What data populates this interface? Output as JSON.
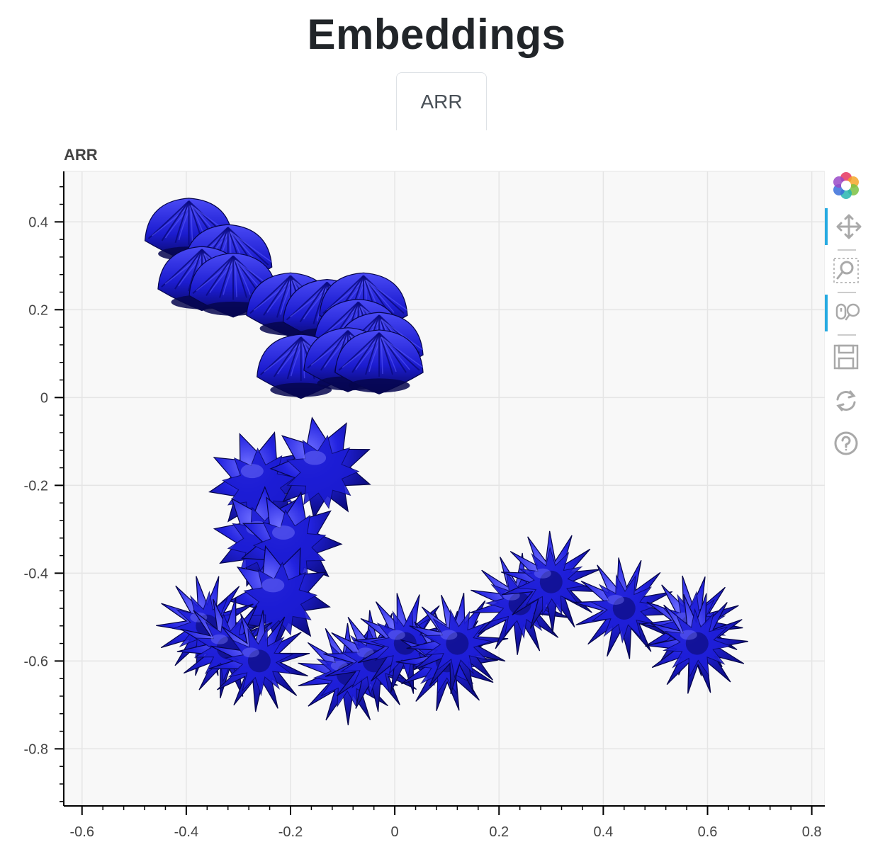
{
  "page": {
    "title": "Embeddings"
  },
  "tabs": [
    {
      "label": "ARR",
      "active": true
    }
  ],
  "plot": {
    "label": "ARR"
  },
  "colors": {
    "glyph": "#1818d4",
    "glyph_dark": "#0a0a7a",
    "grid": "#e5e5e5",
    "plot_bg": "#f8f8f8"
  },
  "toolbar": {
    "tools": [
      {
        "icon": "bokeh-logo-icon",
        "active": false
      },
      {
        "icon": "pan-icon",
        "active": true
      },
      {
        "icon": "box-zoom-icon",
        "active": false
      },
      {
        "icon": "wheel-zoom-icon",
        "active": true
      },
      {
        "icon": "save-icon",
        "active": false
      },
      {
        "icon": "reset-icon",
        "active": false
      },
      {
        "icon": "help-icon",
        "active": false
      }
    ]
  },
  "chart_data": {
    "type": "scatter",
    "title": "ARR",
    "xlabel": "",
    "ylabel": "",
    "xlim": [
      -0.635,
      0.825
    ],
    "ylim": [
      -0.93,
      0.515
    ],
    "xticks": [
      "-0.6",
      "-0.4",
      "-0.2",
      "0",
      "0.2",
      "0.4",
      "0.6",
      "0.8"
    ],
    "xtick_values": [
      -0.6,
      -0.4,
      -0.2,
      0,
      0.2,
      0.4,
      0.6,
      0.8
    ],
    "yticks": [
      "0.4",
      "0.2",
      "0",
      "-0.2",
      "-0.4",
      "-0.6",
      "-0.8"
    ],
    "ytick_values": [
      0.4,
      0.2,
      0,
      -0.2,
      -0.4,
      -0.6,
      -0.8
    ],
    "grid": true,
    "marker": "3d-glyph",
    "series": [
      {
        "points": [
          {
            "x": -0.395,
            "y": 0.37,
            "shape": "dome"
          },
          {
            "x": -0.32,
            "y": 0.31,
            "shape": "dome"
          },
          {
            "x": -0.37,
            "y": 0.26,
            "shape": "dome"
          },
          {
            "x": -0.31,
            "y": 0.245,
            "shape": "dome"
          },
          {
            "x": -0.2,
            "y": 0.2,
            "shape": "dome"
          },
          {
            "x": -0.13,
            "y": 0.185,
            "shape": "dome"
          },
          {
            "x": -0.06,
            "y": 0.2,
            "shape": "dome"
          },
          {
            "x": -0.07,
            "y": 0.14,
            "shape": "dome"
          },
          {
            "x": -0.03,
            "y": 0.11,
            "shape": "dome"
          },
          {
            "x": -0.18,
            "y": 0.06,
            "shape": "dome"
          },
          {
            "x": -0.09,
            "y": 0.075,
            "shape": "dome"
          },
          {
            "x": -0.03,
            "y": 0.07,
            "shape": "dome"
          },
          {
            "x": -0.26,
            "y": -0.19,
            "shape": "burst"
          },
          {
            "x": -0.14,
            "y": -0.16,
            "shape": "burst"
          },
          {
            "x": -0.25,
            "y": -0.32,
            "shape": "burst"
          },
          {
            "x": -0.2,
            "y": -0.33,
            "shape": "burst"
          },
          {
            "x": -0.22,
            "y": -0.45,
            "shape": "burst"
          },
          {
            "x": -0.36,
            "y": -0.52,
            "shape": "spiky"
          },
          {
            "x": -0.32,
            "y": -0.57,
            "shape": "spiky"
          },
          {
            "x": -0.26,
            "y": -0.6,
            "shape": "spiky"
          },
          {
            "x": -0.09,
            "y": -0.63,
            "shape": "spiky"
          },
          {
            "x": -0.04,
            "y": -0.6,
            "shape": "spiky"
          },
          {
            "x": 0.02,
            "y": -0.56,
            "shape": "spiky"
          },
          {
            "x": 0.1,
            "y": -0.6,
            "shape": "spiky"
          },
          {
            "x": 0.12,
            "y": -0.56,
            "shape": "spiky"
          },
          {
            "x": 0.24,
            "y": -0.47,
            "shape": "spiky"
          },
          {
            "x": 0.3,
            "y": -0.42,
            "shape": "spiky"
          },
          {
            "x": 0.44,
            "y": -0.48,
            "shape": "spiky"
          },
          {
            "x": 0.57,
            "y": -0.52,
            "shape": "spiky"
          },
          {
            "x": 0.58,
            "y": -0.56,
            "shape": "spiky"
          }
        ]
      }
    ]
  }
}
